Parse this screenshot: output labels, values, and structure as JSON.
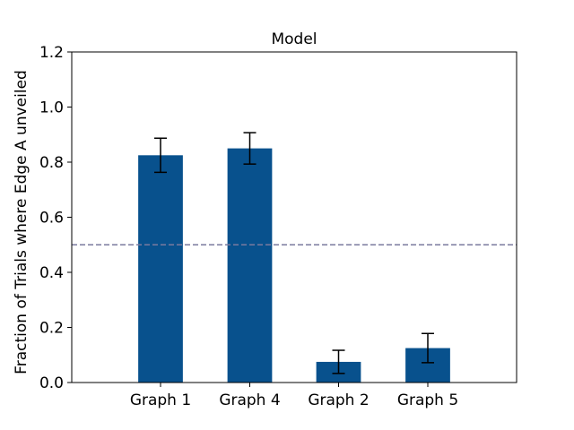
{
  "chart_data": {
    "type": "bar",
    "title": "Model",
    "xlabel": "",
    "ylabel": "Fraction of Trials where Edge A unveiled",
    "categories": [
      "Graph 1",
      "Graph 4",
      "Graph 2",
      "Graph 5"
    ],
    "values": [
      0.825,
      0.85,
      0.075,
      0.125
    ],
    "errors": [
      0.062,
      0.057,
      0.042,
      0.053
    ],
    "ylim": [
      0.0,
      1.2
    ],
    "yticks": [
      "0.0",
      "0.2",
      "0.4",
      "0.6",
      "0.8",
      "1.0",
      "1.2"
    ],
    "reference_line": 0.5,
    "grid": false,
    "colors": {
      "bar": "#08518d",
      "error_bar": "#000000",
      "reference_line": "#7a7a9e"
    }
  }
}
